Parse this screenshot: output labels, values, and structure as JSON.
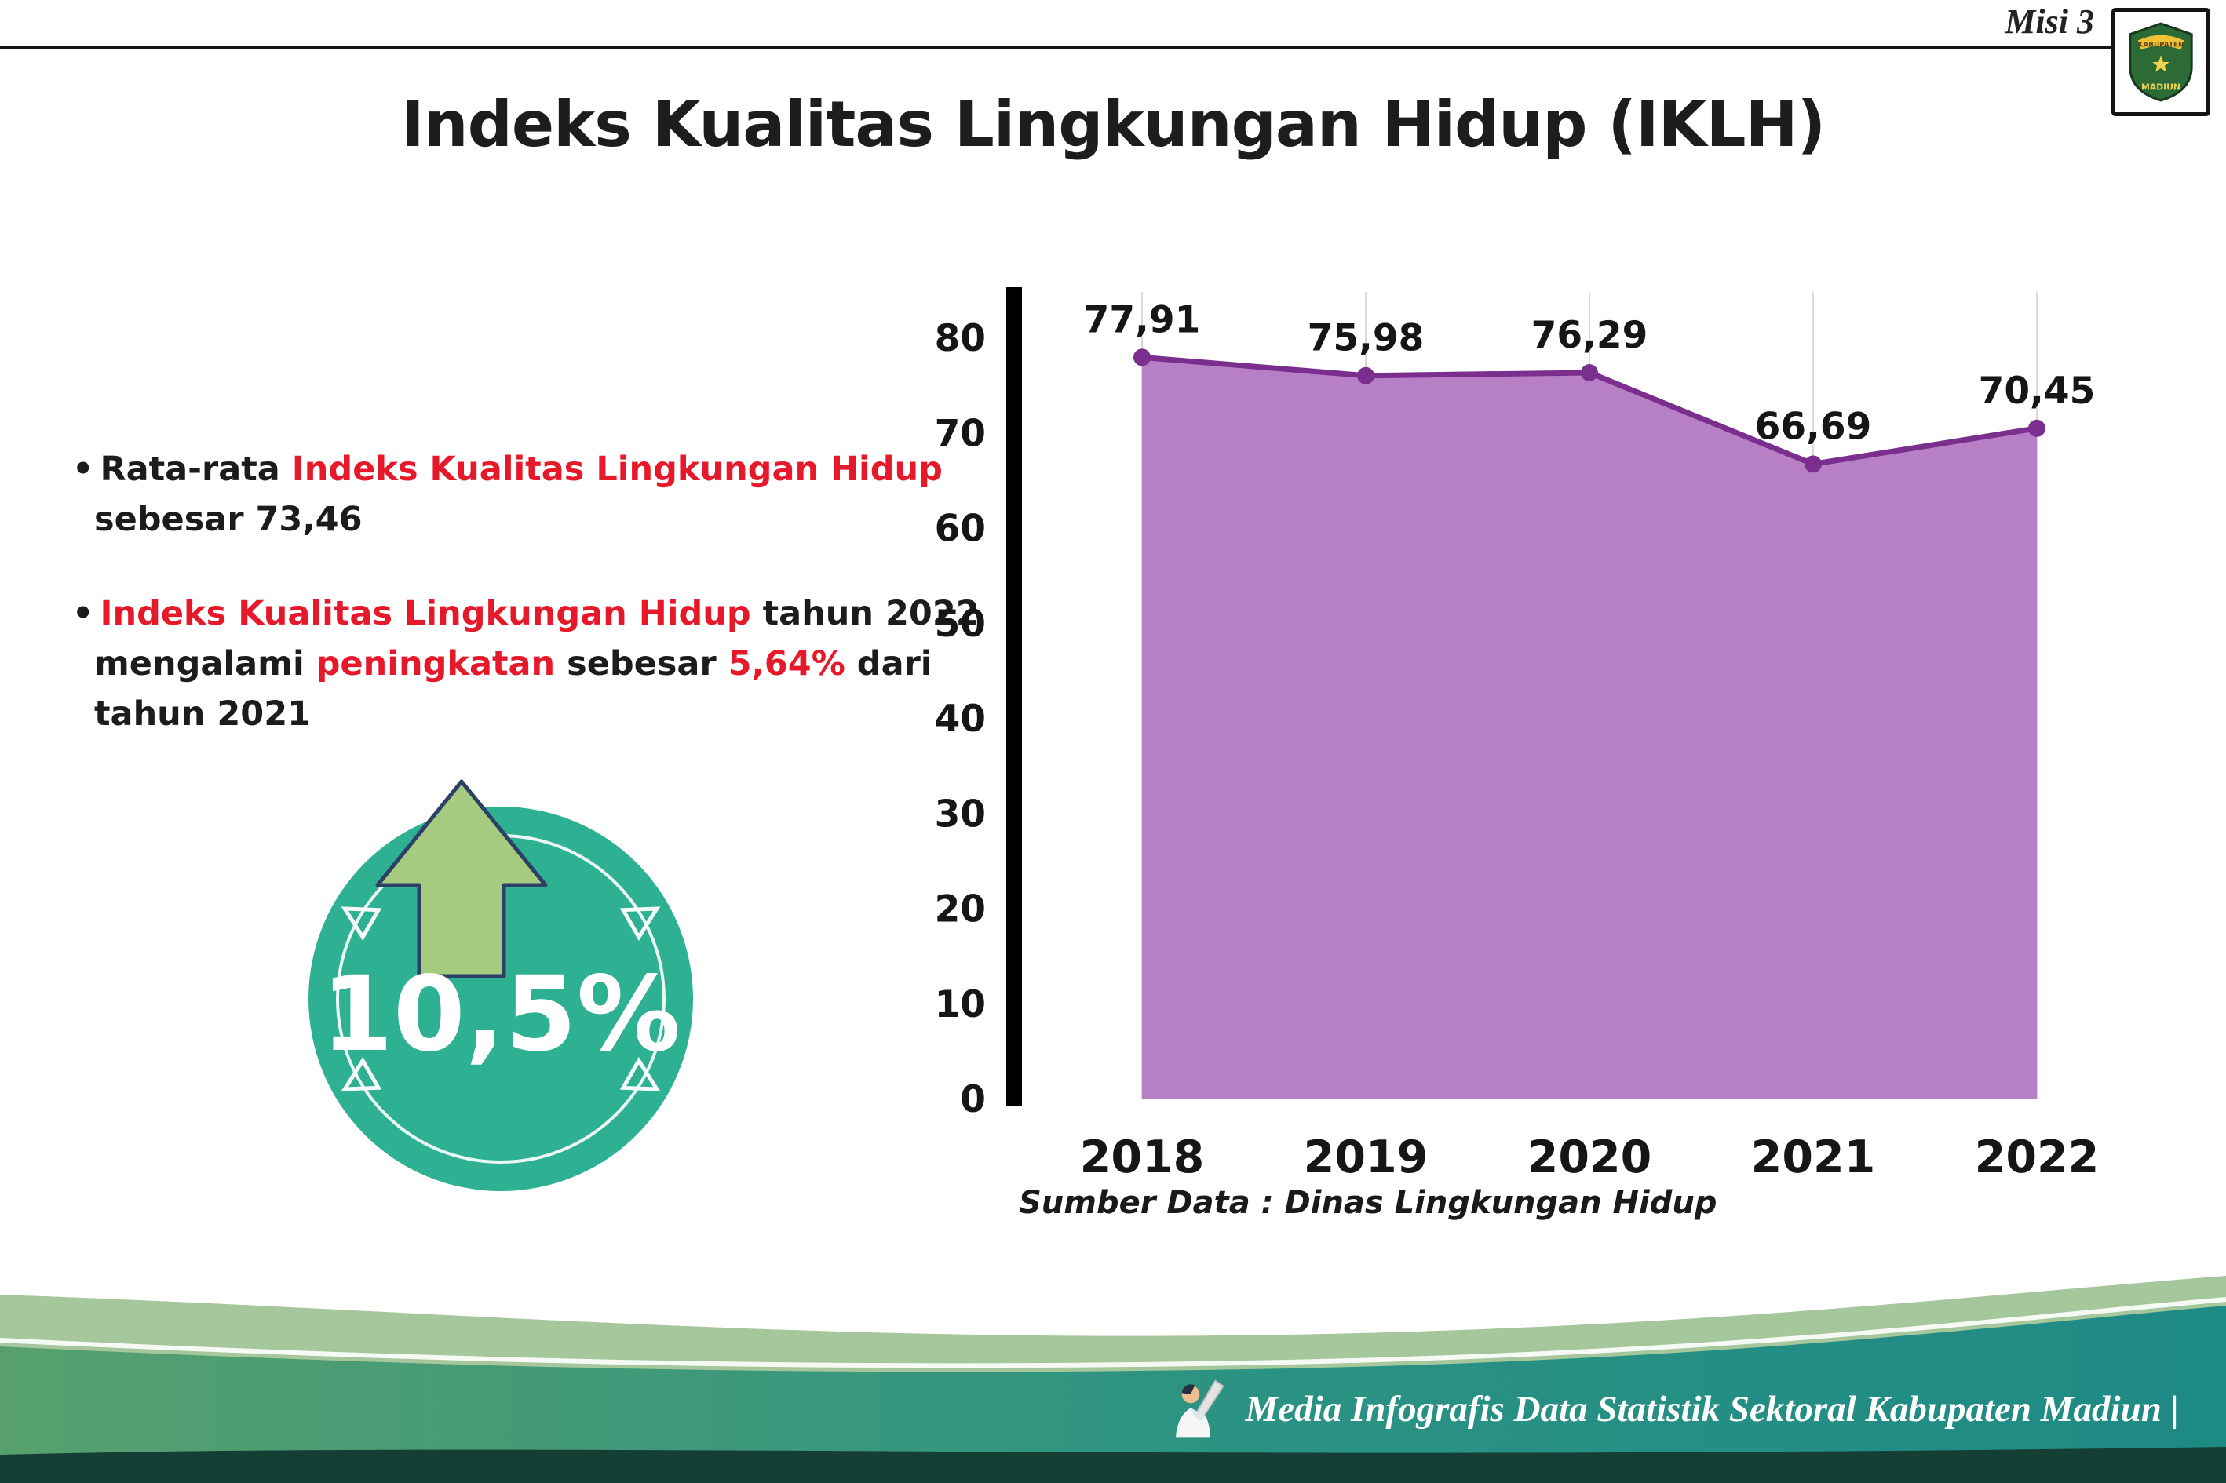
{
  "ui": {
    "bullet_marker": "•"
  },
  "header": {
    "misi_label": "Misi 3",
    "title": "Indeks Kualitas Lingkungan Hidup (IKLH)"
  },
  "logo": {
    "line1": "KABUPATEN",
    "line2": "MADIUN"
  },
  "bullets": [
    {
      "lines": [
        [
          {
            "t": "Rata-rata "
          },
          {
            "t": "Indeks Kualitas Lingkungan Hidup"
          }
        ],
        [
          {
            "t": "sebesar 73,46"
          }
        ]
      ]
    },
    {
      "lines": [
        [
          {
            "t": "Indeks Kualitas Lingkungan Hidup"
          },
          {
            "t": " tahun 2022"
          }
        ],
        [
          {
            "t": "mengalami "
          },
          {
            "t": "peningkatan"
          },
          {
            "t": " sebesar "
          },
          {
            "t": "5,64%"
          },
          {
            "t": " dari"
          }
        ],
        [
          {
            "t": "tahun 2021"
          }
        ]
      ]
    }
  ],
  "badge": {
    "value": "10,5%"
  },
  "chart_data": {
    "type": "area",
    "title": "",
    "xlabel": "",
    "ylabel": "",
    "categories": [
      "2018",
      "2019",
      "2020",
      "2021",
      "2022"
    ],
    "values": [
      77.91,
      75.98,
      76.29,
      66.69,
      70.45
    ],
    "labels": [
      "77,91",
      "75,98",
      "76,29",
      "66,69",
      "70,45"
    ],
    "ylim": [
      0,
      80
    ],
    "ytick_step": 10,
    "grid": "vertical",
    "legend": "none",
    "source_label": "Sumber Data : Dinas Lingkungan Hidup",
    "colors": {
      "area": "#b77fc5",
      "line": "#7a2e8e",
      "point": "#7a2e8e",
      "grid": "#d9d9d9",
      "axis": "#000000",
      "label": "#161616"
    }
  },
  "footer": {
    "text": "Media Infografis Data Statistik Sektoral Kabupaten Madiun |"
  }
}
